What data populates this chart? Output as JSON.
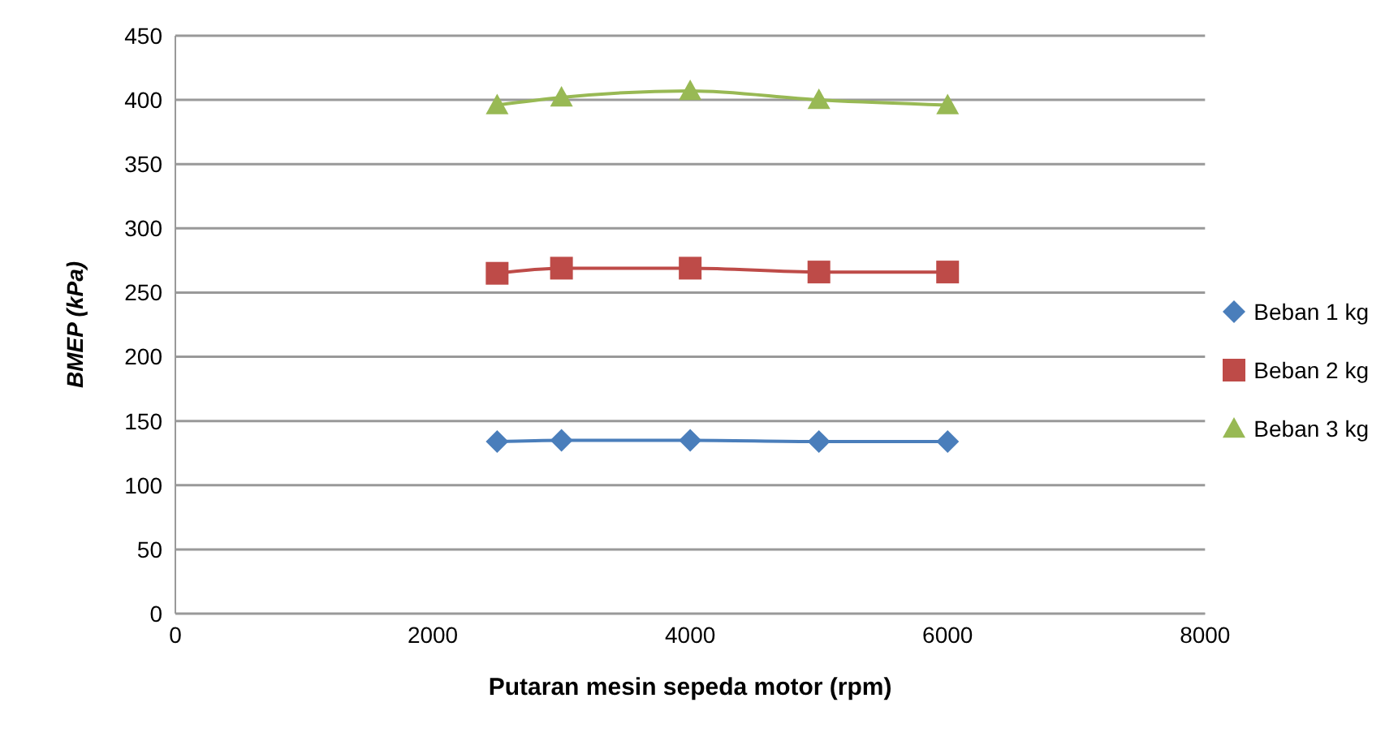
{
  "chart_data": {
    "type": "line",
    "xlabel": "Putaran mesin sepeda motor (rpm)",
    "ylabel": "BMEP (kPa)",
    "x": [
      2500,
      3000,
      4000,
      5000,
      6000
    ],
    "series": [
      {
        "name": "Beban 1 kg",
        "color": "#4a7ebb",
        "marker": "diamond",
        "values": [
          134,
          135,
          135,
          134,
          134
        ]
      },
      {
        "name": "Beban 2 kg",
        "color": "#be4b48",
        "marker": "square",
        "values": [
          265,
          269,
          269,
          266,
          266
        ]
      },
      {
        "name": "Beban 3 kg",
        "color": "#98b954",
        "marker": "triangle",
        "values": [
          396,
          402,
          407,
          400,
          396
        ]
      }
    ],
    "xlim": [
      0,
      8000
    ],
    "xticks": [
      0,
      2000,
      4000,
      6000,
      8000
    ],
    "ylim": [
      0,
      450
    ],
    "yticks": [
      0,
      50,
      100,
      150,
      200,
      250,
      300,
      350,
      400,
      450
    ],
    "grid": "y",
    "legend": "right",
    "line_style": "solid"
  }
}
